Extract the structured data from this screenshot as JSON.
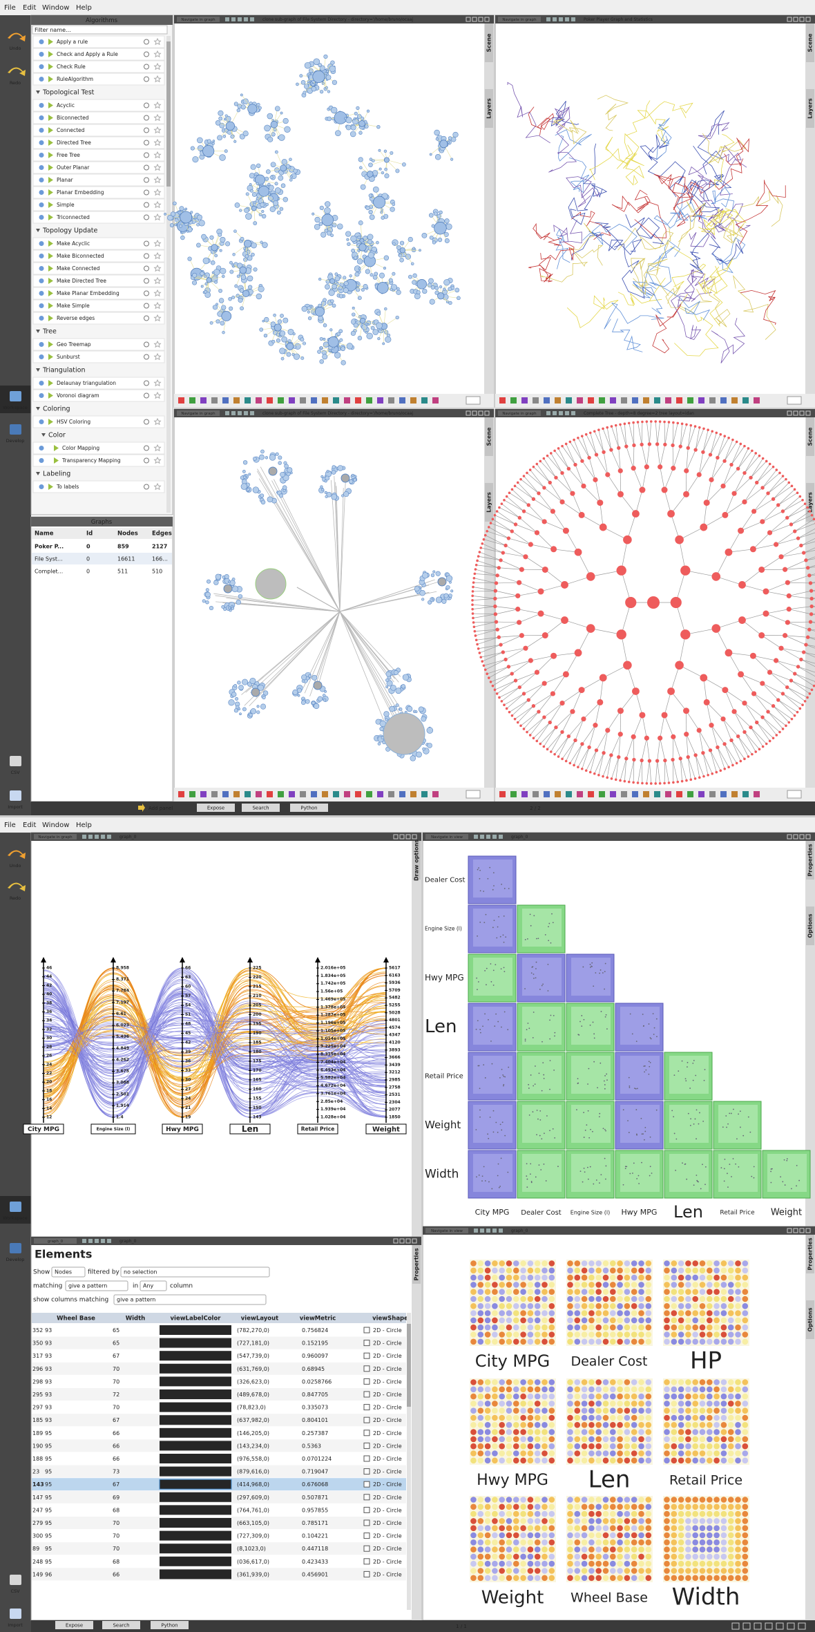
{
  "top": {
    "menu": [
      "File",
      "Edit",
      "Window",
      "Help"
    ],
    "tools": [
      "Undo",
      "Redo",
      "Workspace",
      "Develop",
      "CSV",
      "Import"
    ],
    "algorithms": {
      "title": "Algorithms",
      "filter": "Filter name...",
      "groups": [
        {
          "items": [
            "Apply a rule",
            "Check and Apply a Rule",
            "Check Rule",
            "RuleAlgorithm"
          ]
        },
        {
          "name": "Topological Test",
          "items": [
            "Acyclic",
            "Biconnected",
            "Connected",
            "Directed Tree",
            "Free Tree",
            "Outer Planar",
            "Planar",
            "Planar Embedding",
            "Simple",
            "Triconnected"
          ]
        },
        {
          "name": "Topology Update",
          "items": [
            "Make Acyclic",
            "Make Biconnected",
            "Make Connected",
            "Make Directed Tree",
            "Make Planar Embedding",
            "Make Simple",
            "Reverse edges"
          ]
        },
        {
          "name": "Tree",
          "items": [
            "Geo Treemap",
            "Sunburst"
          ]
        },
        {
          "name": "Triangulation",
          "items": [
            "Delaunay triangulation",
            "Voronoi diagram"
          ]
        },
        {
          "name": "Coloring",
          "items": [
            "HSV Coloring"
          ],
          "groups": [
            {
              "name": "Color",
              "items": [
                "Color Mapping",
                "Transparency Mapping"
              ]
            }
          ]
        },
        {
          "name": "Labeling",
          "items": [
            "To labels"
          ]
        }
      ]
    },
    "graphs": {
      "title": "Graphs",
      "columns": [
        "Name",
        "Id",
        "Nodes",
        "Edges"
      ],
      "rows": [
        [
          "Poker P...",
          0,
          859,
          2127
        ],
        [
          "File Syst...",
          0,
          16611,
          "166..."
        ],
        [
          "Complet...",
          0,
          511,
          510
        ]
      ]
    },
    "nav": "Navigate in graph",
    "views": [
      "clone sub-graph of File System Directory - directory='/home/bruno/ocaaj",
      "Poker Player Graph and Statistics",
      "clone sub-graph of File System Directory - directory='/home/bruno/ocaaj",
      "Complete Tree - depth=8 degree=2 tree layout=idan"
    ],
    "tabs": [
      "Scene",
      "Layers"
    ],
    "status": [
      "Add panel",
      "Expose",
      "Search",
      "Python",
      "2 / 2"
    ]
  },
  "bottom": {
    "menu": [
      "File",
      "Edit",
      "Window",
      "Help"
    ],
    "tools": [
      "Undo",
      "Redo",
      "Workspace",
      "Develop",
      "CSV",
      "Import"
    ],
    "parallel": {
      "nav": "Navigate in graph",
      "title": "graph_0",
      "tab": "Draw options",
      "axes": [
        {
          "name": "City MPG",
          "ticks": [
            46,
            44,
            42,
            40,
            38,
            36,
            34,
            32,
            30,
            28,
            26,
            24,
            22,
            20,
            18,
            16,
            14,
            12
          ]
        },
        {
          "name": "Engine Size (l)",
          "ticks": [
            8.958,
            8.371,
            7.784,
            7.197,
            6.61,
            6.023,
            5.436,
            4.849,
            4.262,
            3.675,
            3.088,
            2.501,
            1.914,
            1.4
          ]
        },
        {
          "name": "Hwy MPG",
          "ticks": [
            66,
            63,
            60,
            57,
            54,
            51,
            48,
            45,
            42,
            39,
            36,
            33,
            30,
            27,
            24,
            21,
            19
          ]
        },
        {
          "name": "Len",
          "ticks": [
            225,
            220,
            215,
            210,
            205,
            200,
            195,
            190,
            185,
            180,
            175,
            170,
            165,
            160,
            155,
            150,
            143
          ]
        },
        {
          "name": "Retail Price",
          "ticks": [
            "2.016e+05",
            "1.834e+05",
            "1.742e+05",
            "1.56e+05",
            "1.469e+05",
            "1.378e+05",
            "1.287e+05",
            "1.196e+05",
            "1.105e+05",
            "1.014e+05",
            "9.225e+04",
            "8.315e+04",
            "7.404e+04",
            "6.493e+04",
            "5.582e+04",
            "4.672e+04",
            "3.761e+04",
            "2.85e+04",
            "1.939e+04",
            "1.028e+04"
          ]
        },
        {
          "name": "Weight",
          "ticks": [
            5617,
            6163,
            5936,
            5709,
            5482,
            5255,
            5028,
            4801,
            4574,
            4347,
            4120,
            3893,
            3666,
            3439,
            3212,
            2985,
            2758,
            2531,
            2304,
            2077,
            1850
          ]
        }
      ]
    },
    "matrix": {
      "nav": "Navigate in view",
      "title": "graph_0",
      "tabs": [
        "Properties",
        "Options"
      ],
      "rows": [
        "Dealer Cost",
        "Engine Size (l)",
        "Hwy MPG",
        "Len",
        "Retail Price",
        "Weight",
        "Width"
      ],
      "columns": [
        "City MPG",
        "Dealer Cost",
        "Engine Size (l)",
        "Hwy MPG",
        "Len",
        "Retail Price",
        "Weight"
      ]
    },
    "pixel": {
      "nav": "Navigate in view",
      "title": "graph_0",
      "tabs": [
        "Properties",
        "Options"
      ],
      "labels": [
        "City MPG",
        "Dealer Cost",
        "HP",
        "Hwy MPG",
        "Len",
        "Retail Price",
        "Weight",
        "Wheel Base",
        "Width"
      ]
    },
    "elements": {
      "title": "graph_0",
      "heading": "Elements",
      "show": "Show",
      "entity": "Nodes",
      "filtered": "filtered by",
      "selection": "no selection",
      "matching": "matching",
      "pattern": "give a pattern",
      "in": "in",
      "any": "Any",
      "column": "column",
      "show_columns": "show columns matching",
      "pattern2": "give a pattern",
      "tab": "Properties",
      "columns": [
        "Wheel Base",
        "Width",
        "viewLabelColor",
        "viewLayout",
        "viewMetric",
        "viewShape"
      ],
      "rows": [
        [
          352,
          93,
          65,
          "(782,270,0)",
          0.756824,
          "2D - Circle"
        ],
        [
          350,
          93,
          65,
          "(727,181,0)",
          0.152195,
          "2D - Circle"
        ],
        [
          317,
          93,
          67,
          "(547,739,0)",
          0.960097,
          "2D - Circle"
        ],
        [
          296,
          93,
          70,
          "(631,769,0)",
          0.68945,
          "2D - Circle"
        ],
        [
          298,
          93,
          70,
          "(326,623,0)",
          0.0258766,
          "2D - Circle"
        ],
        [
          295,
          93,
          72,
          "(489,678,0)",
          0.847705,
          "2D - Circle"
        ],
        [
          297,
          93,
          70,
          "(78,823,0)",
          0.335073,
          "2D - Circle"
        ],
        [
          185,
          93,
          67,
          "(637,982,0)",
          0.804101,
          "2D - Circle"
        ],
        [
          189,
          95,
          66,
          "(146,205,0)",
          0.257387,
          "2D - Circle"
        ],
        [
          190,
          95,
          66,
          "(143,234,0)",
          0.5363,
          "2D - Circle"
        ],
        [
          188,
          95,
          66,
          "(976,558,0)",
          0.0701224,
          "2D - Circle"
        ],
        [
          23,
          95,
          73,
          "(879,616,0)",
          0.719047,
          "2D - Circle"
        ],
        [
          143,
          95,
          67,
          "(414,968,0)",
          0.676068,
          "2D - Circle"
        ],
        [
          147,
          95,
          69,
          "(297,609,0)",
          0.507871,
          "2D - Circle"
        ],
        [
          247,
          95,
          68,
          "(764,761,0)",
          0.957855,
          "2D - Circle"
        ],
        [
          279,
          95,
          70,
          "(663,105,0)",
          0.785171,
          "2D - Circle"
        ],
        [
          300,
          95,
          70,
          "(727,309,0)",
          0.104221,
          "2D - Circle"
        ],
        [
          89,
          95,
          70,
          "(8,1023,0)",
          0.447118,
          "2D - Circle"
        ],
        [
          248,
          95,
          68,
          "(036,617,0)",
          0.423433,
          "2D - Circle"
        ],
        [
          149,
          96,
          66,
          "(361,939,0)",
          0.456901,
          "2D - Circle"
        ]
      ],
      "selected": 12
    },
    "status": [
      "Expose",
      "Search",
      "Python",
      "1 / 1"
    ]
  }
}
